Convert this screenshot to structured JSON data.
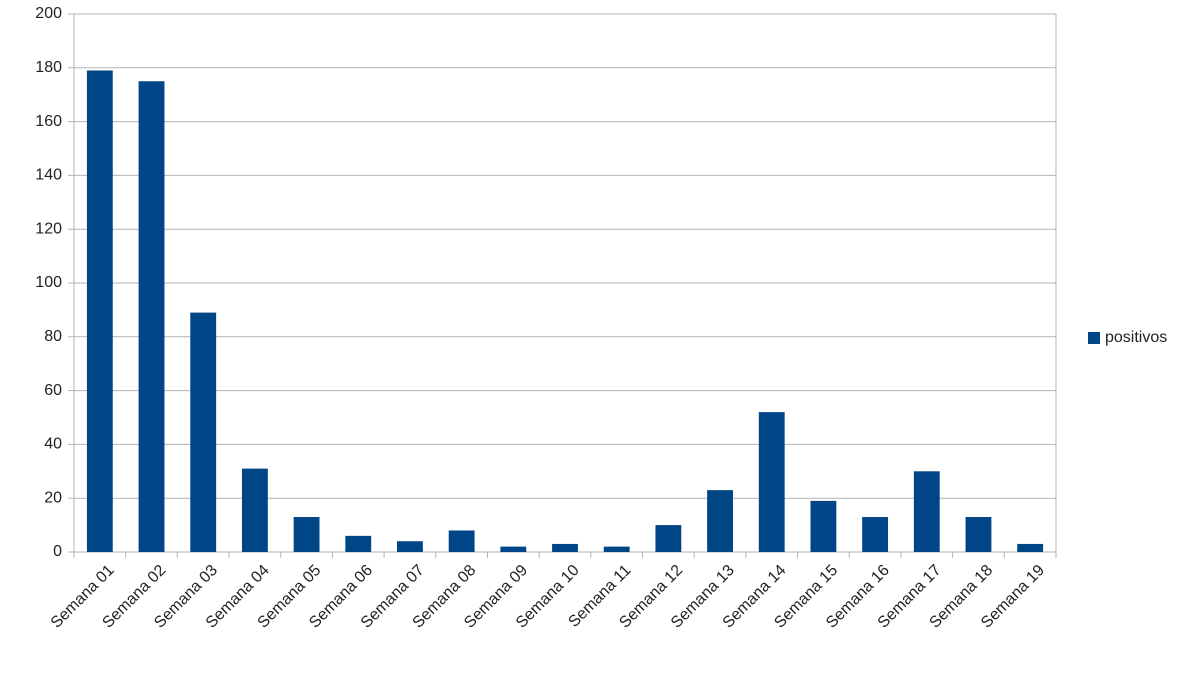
{
  "chart_data": {
    "type": "bar",
    "categories": [
      "Semana 01",
      "Semana 02",
      "Semana 03",
      "Semana 04",
      "Semana 05",
      "Semana 06",
      "Semana 07",
      "Semana 08",
      "Semana 09",
      "Semana 10",
      "Semana 11",
      "Semana 12",
      "Semana 13",
      "Semana 14",
      "Semana 15",
      "Semana 16",
      "Semana 17",
      "Semana 18",
      "Semana 19"
    ],
    "series": [
      {
        "name": "positivos",
        "color": "#004586",
        "values": [
          179,
          175,
          89,
          31,
          13,
          6,
          4,
          8,
          2,
          3,
          2,
          10,
          23,
          52,
          19,
          13,
          30,
          13,
          3
        ]
      }
    ],
    "ylim": [
      0,
      200
    ],
    "yticks": [
      0,
      20,
      40,
      60,
      80,
      100,
      120,
      140,
      160,
      180,
      200
    ],
    "grid": true,
    "legend": "right"
  }
}
